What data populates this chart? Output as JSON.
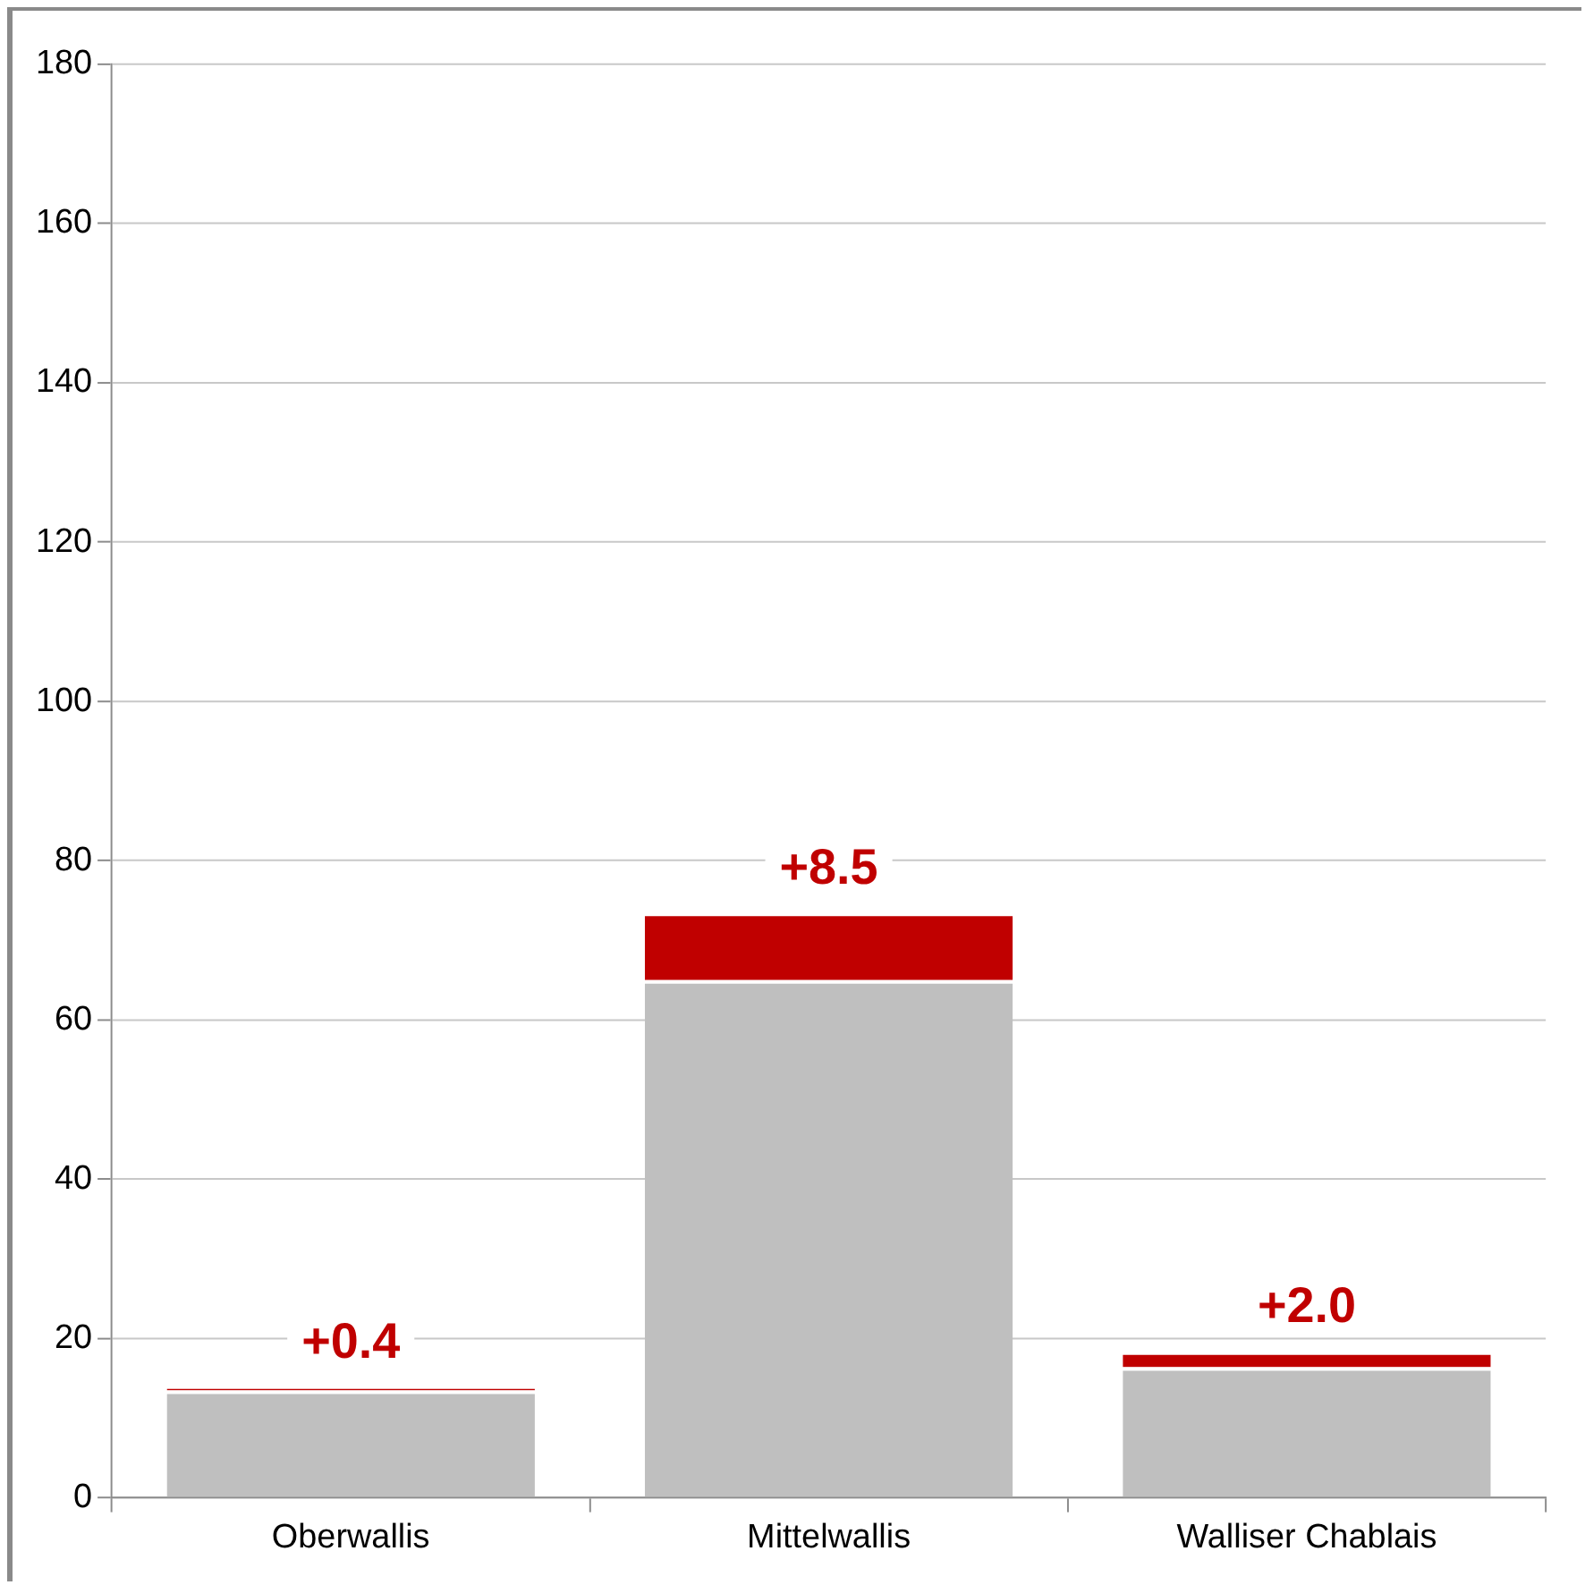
{
  "chart_data": {
    "type": "bar",
    "stacked": true,
    "categories": [
      "Oberwallis",
      "Mittelwallis",
      "Walliser Chablais"
    ],
    "series": [
      {
        "color": "#bfbfbf",
        "values": [
          13.5,
          65.0,
          16.4
        ]
      },
      {
        "color": "#c00000",
        "values": [
          0.4,
          8.5,
          2.0
        ],
        "value_labels": [
          "+0.4",
          "+8.5",
          "+2.0"
        ]
      }
    ],
    "ylim": [
      0,
      180
    ],
    "yticks": [
      0,
      20,
      40,
      60,
      80,
      100,
      120,
      140,
      160,
      180
    ],
    "grid": "y",
    "legend": false
  }
}
